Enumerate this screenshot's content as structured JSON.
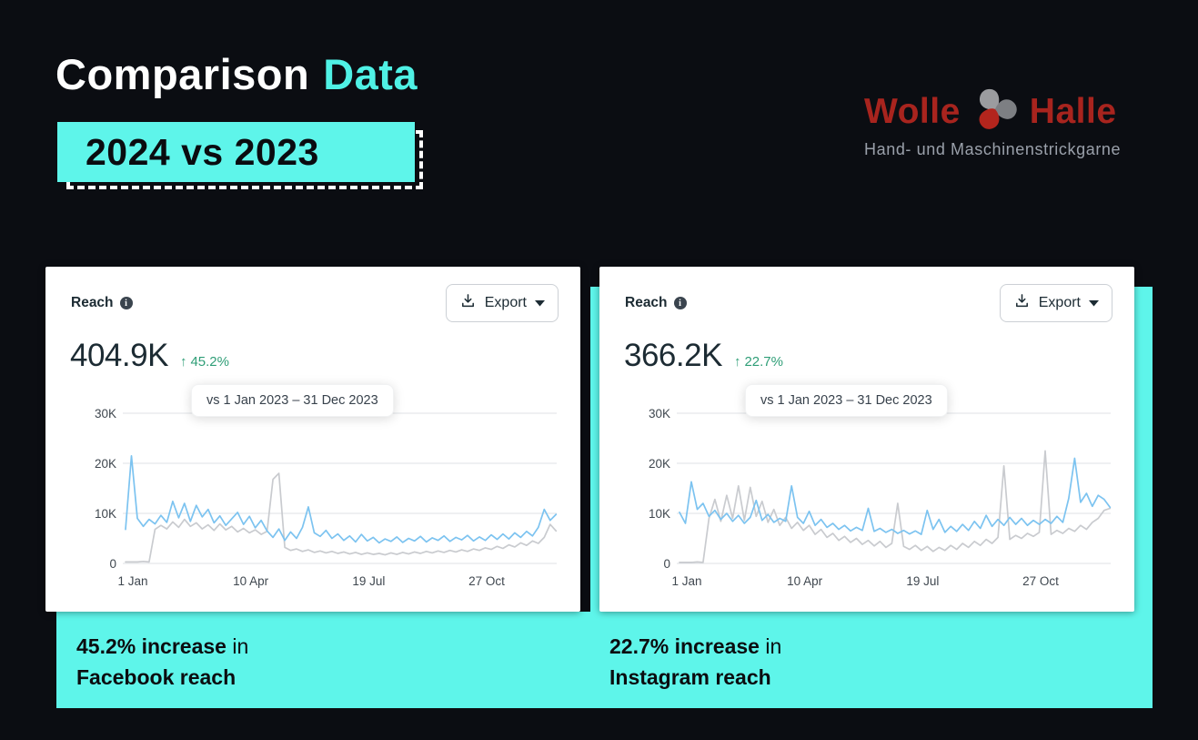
{
  "header": {
    "title_white": "Comparison",
    "title_accent": "Data",
    "year_badge": "2024 vs 2023"
  },
  "logo": {
    "word_left": "Wolle",
    "word_right": "Halle",
    "subtitle": "Hand- und Maschinenstrickgarne"
  },
  "icons": {
    "logo_mark": "yarn-ball-icon",
    "metric_info": "info-icon",
    "export": "download-icon",
    "export_dropdown": "caret-down-icon",
    "delta": "up-arrow-icon"
  },
  "colors": {
    "background": "#0b0d12",
    "accent_cyan": "#5ef5ea",
    "brand_red": "#a8241e",
    "card_bg": "#ffffff",
    "line_2024": "#7cc3f0",
    "line_2023": "#c9cbcf",
    "positive_green": "#2f9e77",
    "text_dark": "#1c2b33"
  },
  "cards": [
    {
      "metric_label": "Reach",
      "export_label": "Export",
      "value": "404.9K",
      "delta": "45.2%",
      "delta_direction": "up",
      "tooltip": "vs 1 Jan 2023 – 31 Dec 2023"
    },
    {
      "metric_label": "Reach",
      "export_label": "Export",
      "value": "366.2K",
      "delta": "22.7%",
      "delta_direction": "up",
      "tooltip": "vs 1 Jan 2023 – 31 Dec 2023"
    }
  ],
  "captions": [
    {
      "highlight": "45.2% increase",
      "connector": " in",
      "subject": "Facebook reach"
    },
    {
      "highlight": "22.7% increase",
      "connector": " in",
      "subject": "Instagram reach"
    }
  ],
  "chart_data": [
    {
      "type": "line",
      "title": "Facebook reach: 2024 vs 2023",
      "total_2024": "404.9K",
      "delta_pct": 45.2,
      "x_unit": "day_of_year",
      "x_step_days": 5,
      "values_unit": "thousands",
      "xticks": {
        "days": [
          0,
          100,
          200,
          300
        ],
        "labels": [
          "1 Jan",
          "10 Apr",
          "19 Jul",
          "27 Oct"
        ]
      },
      "yticks": {
        "values": [
          0,
          10,
          20,
          30
        ],
        "labels": [
          "0",
          "10K",
          "20K",
          "30K"
        ]
      },
      "ylim_thousands": [
        0,
        33
      ],
      "grid": true,
      "series": [
        {
          "name": "2024",
          "color": "#7cc3f0",
          "values": [
            6.8,
            21.5,
            9.0,
            7.4,
            8.8,
            7.9,
            9.6,
            8.2,
            12.4,
            9.1,
            12.0,
            8.4,
            11.6,
            9.3,
            10.8,
            8.1,
            9.5,
            7.6,
            8.9,
            10.2,
            7.8,
            9.4,
            7.1,
            8.6,
            6.5,
            5.2,
            6.9,
            4.6,
            6.3,
            5.0,
            7.2,
            11.3,
            6.1,
            5.4,
            6.6,
            5.0,
            5.9,
            4.6,
            5.5,
            4.3,
            5.8,
            4.5,
            5.2,
            4.1,
            4.9,
            4.4,
            5.3,
            4.2,
            5.0,
            4.5,
            5.4,
            4.3,
            5.1,
            4.6,
            5.5,
            4.4,
            5.2,
            4.7,
            5.6,
            4.5,
            5.3,
            4.6,
            5.7,
            4.8,
            5.9,
            4.9,
            6.1,
            5.2,
            6.4,
            5.5,
            7.2,
            10.8,
            8.6,
            9.8
          ]
        },
        {
          "name": "2023",
          "color": "#c9cbcf",
          "values": [
            0.3,
            0.3,
            0.3,
            0.4,
            0.3,
            6.8,
            7.6,
            6.9,
            8.3,
            7.2,
            8.8,
            7.4,
            8.1,
            6.9,
            7.7,
            6.6,
            7.9,
            6.7,
            7.4,
            6.3,
            7.0,
            6.1,
            6.7,
            5.8,
            6.4,
            16.8,
            18.0,
            3.2,
            2.6,
            2.9,
            2.4,
            2.7,
            2.2,
            2.5,
            2.1,
            2.4,
            2.0,
            2.3,
            1.9,
            2.2,
            1.8,
            2.1,
            1.8,
            2.0,
            1.7,
            2.1,
            1.8,
            2.2,
            1.9,
            2.3,
            2.0,
            2.4,
            2.1,
            2.5,
            2.2,
            2.6,
            2.3,
            2.7,
            2.4,
            2.9,
            2.6,
            3.1,
            2.8,
            3.4,
            3.0,
            3.7,
            3.3,
            4.1,
            3.6,
            4.5,
            4.0,
            5.2,
            7.8,
            6.5
          ]
        }
      ]
    },
    {
      "type": "line",
      "title": "Instagram reach: 2024 vs 2023",
      "total_2024": "366.2K",
      "delta_pct": 22.7,
      "x_unit": "day_of_year",
      "x_step_days": 5,
      "values_unit": "thousands",
      "xticks": {
        "days": [
          0,
          100,
          200,
          300
        ],
        "labels": [
          "1 Jan",
          "10 Apr",
          "19 Jul",
          "27 Oct"
        ]
      },
      "yticks": {
        "values": [
          0,
          10,
          20,
          30
        ],
        "labels": [
          "0",
          "10K",
          "20K",
          "30K"
        ]
      },
      "ylim_thousands": [
        0,
        33
      ],
      "grid": true,
      "series": [
        {
          "name": "2024",
          "color": "#7cc3f0",
          "values": [
            10.2,
            8.0,
            16.3,
            10.8,
            12.0,
            9.4,
            10.6,
            8.8,
            10.0,
            8.4,
            9.6,
            8.0,
            9.2,
            12.6,
            8.6,
            9.8,
            8.2,
            9.0,
            8.4,
            15.5,
            9.2,
            8.0,
            10.4,
            7.6,
            8.8,
            7.2,
            8.0,
            6.8,
            7.6,
            6.5,
            7.2,
            6.6,
            11.0,
            6.4,
            7.0,
            6.2,
            6.8,
            6.0,
            6.6,
            5.9,
            6.5,
            5.8,
            10.6,
            6.8,
            8.8,
            6.2,
            7.4,
            6.4,
            7.8,
            6.6,
            8.4,
            7.0,
            9.6,
            7.4,
            8.8,
            7.6,
            9.2,
            7.8,
            9.0,
            7.6,
            8.6,
            7.8,
            8.8,
            8.0,
            9.4,
            8.2,
            13.0,
            21.0,
            12.2,
            14.0,
            11.4,
            13.6,
            12.8,
            11.2
          ]
        },
        {
          "name": "2023",
          "color": "#c9cbcf",
          "values": [
            0.2,
            0.2,
            0.2,
            0.3,
            0.2,
            9.0,
            12.8,
            8.4,
            13.6,
            9.0,
            15.5,
            8.6,
            15.2,
            9.4,
            12.4,
            8.2,
            10.8,
            7.6,
            9.2,
            7.0,
            8.2,
            6.6,
            7.6,
            5.8,
            6.8,
            5.2,
            6.0,
            4.6,
            5.4,
            4.2,
            5.0,
            3.8,
            4.6,
            3.5,
            4.4,
            3.2,
            4.0,
            12.0,
            3.4,
            2.8,
            3.6,
            2.6,
            3.4,
            2.4,
            3.2,
            2.6,
            3.6,
            2.8,
            4.0,
            3.2,
            4.4,
            3.6,
            4.8,
            4.0,
            5.2,
            19.5,
            4.8,
            5.6,
            5.0,
            6.0,
            5.4,
            6.2,
            22.5,
            5.8,
            6.6,
            6.0,
            7.0,
            6.4,
            7.6,
            6.8,
            8.2,
            9.0,
            10.6,
            11.0
          ]
        }
      ]
    }
  ]
}
